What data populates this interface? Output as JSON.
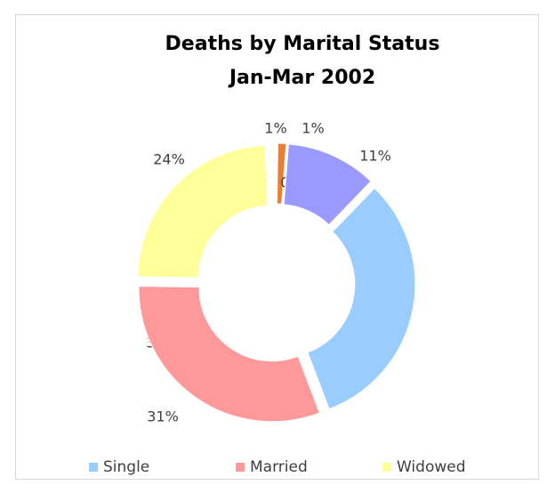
{
  "chart_data": {
    "type": "doughnut",
    "title": "Deaths by Marital Status",
    "subtitle": "Jan-Mar 2002",
    "categories": [
      "Single",
      "Married",
      "Widowed",
      null,
      null,
      null,
      null
    ],
    "values": [
      32,
      31,
      24,
      1,
      1,
      0,
      11
    ],
    "value_labels": [
      "32%",
      "31%",
      "24%",
      "1%",
      "1%",
      "0%",
      "11%"
    ],
    "colors": [
      "#99ccff",
      "#ff9999",
      "#ffff99",
      "#ffffff",
      "#ed7d31",
      "#4472c4",
      "#9999ff"
    ],
    "legend": "bottom"
  }
}
